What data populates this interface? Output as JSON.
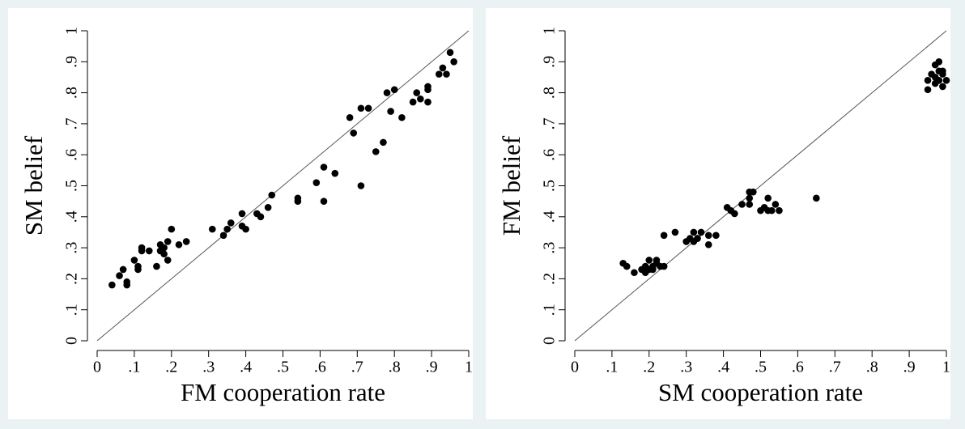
{
  "chart_data": [
    {
      "type": "scatter",
      "xlabel": "FM cooperation rate",
      "ylabel": "SM belief",
      "color": "#000000",
      "diagonal": true,
      "xlim": [
        0,
        1
      ],
      "ylim": [
        0,
        1
      ],
      "xticks": [
        0,
        {
          "value": 0.1,
          "label": ".1"
        },
        {
          "value": 0.2,
          "label": ".2"
        },
        {
          "value": 0.3,
          "label": ".3"
        },
        {
          "value": 0.4,
          "label": ".4"
        },
        {
          "value": 0.5,
          "label": ".5"
        },
        {
          "value": 0.6,
          "label": ".6"
        },
        {
          "value": 0.7,
          "label": ".7"
        },
        {
          "value": 0.8,
          "label": ".8"
        },
        {
          "value": 0.9,
          "label": ".9"
        },
        1
      ],
      "yticks": [
        0,
        {
          "value": 0.1,
          "label": ".1"
        },
        {
          "value": 0.2,
          "label": ".2"
        },
        {
          "value": 0.3,
          "label": ".3"
        },
        {
          "value": 0.4,
          "label": ".4"
        },
        {
          "value": 0.5,
          "label": ".5"
        },
        {
          "value": 0.6,
          "label": ".6"
        },
        {
          "value": 0.7,
          "label": ".7"
        },
        {
          "value": 0.8,
          "label": ".8"
        },
        {
          "value": 0.9,
          "label": ".9"
        },
        1
      ],
      "x": [
        0.04,
        0.06,
        0.07,
        0.08,
        0.08,
        0.1,
        0.11,
        0.11,
        0.12,
        0.12,
        0.14,
        0.16,
        0.17,
        0.17,
        0.18,
        0.18,
        0.19,
        0.19,
        0.2,
        0.22,
        0.24,
        0.31,
        0.34,
        0.35,
        0.36,
        0.39,
        0.39,
        0.4,
        0.43,
        0.44,
        0.46,
        0.47,
        0.54,
        0.54,
        0.59,
        0.61,
        0.61,
        0.64,
        0.68,
        0.69,
        0.71,
        0.71,
        0.73,
        0.75,
        0.77,
        0.78,
        0.79,
        0.8,
        0.82,
        0.85,
        0.86,
        0.87,
        0.89,
        0.89,
        0.89,
        0.92,
        0.93,
        0.94,
        0.95,
        0.96
      ],
      "values": [
        0.18,
        0.21,
        0.23,
        0.19,
        0.18,
        0.26,
        0.23,
        0.24,
        0.3,
        0.29,
        0.29,
        0.24,
        0.31,
        0.29,
        0.28,
        0.3,
        0.26,
        0.32,
        0.36,
        0.31,
        0.32,
        0.36,
        0.34,
        0.36,
        0.38,
        0.41,
        0.37,
        0.36,
        0.41,
        0.4,
        0.43,
        0.47,
        0.45,
        0.46,
        0.51,
        0.56,
        0.45,
        0.54,
        0.72,
        0.67,
        0.75,
        0.5,
        0.75,
        0.61,
        0.64,
        0.8,
        0.74,
        0.81,
        0.72,
        0.77,
        0.8,
        0.78,
        0.82,
        0.81,
        0.77,
        0.86,
        0.88,
        0.86,
        0.93,
        0.9
      ]
    },
    {
      "type": "scatter",
      "xlabel": "SM cooperation rate",
      "ylabel": "FM belief",
      "color": "#000000",
      "diagonal": true,
      "xlim": [
        0,
        1
      ],
      "ylim": [
        0,
        1
      ],
      "xticks": [
        0,
        {
          "value": 0.1,
          "label": ".1"
        },
        {
          "value": 0.2,
          "label": ".2"
        },
        {
          "value": 0.3,
          "label": ".3"
        },
        {
          "value": 0.4,
          "label": ".4"
        },
        {
          "value": 0.5,
          "label": ".5"
        },
        {
          "value": 0.6,
          "label": ".6"
        },
        {
          "value": 0.7,
          "label": ".7"
        },
        {
          "value": 0.8,
          "label": ".8"
        },
        {
          "value": 0.9,
          "label": ".9"
        },
        1
      ],
      "yticks": [
        0,
        {
          "value": 0.1,
          "label": ".1"
        },
        {
          "value": 0.2,
          "label": ".2"
        },
        {
          "value": 0.3,
          "label": ".3"
        },
        {
          "value": 0.4,
          "label": ".4"
        },
        {
          "value": 0.5,
          "label": ".5"
        },
        {
          "value": 0.6,
          "label": ".6"
        },
        {
          "value": 0.7,
          "label": ".7"
        },
        {
          "value": 0.8,
          "label": ".8"
        },
        {
          "value": 0.9,
          "label": ".9"
        },
        1
      ],
      "x": [
        0.13,
        0.14,
        0.16,
        0.18,
        0.19,
        0.19,
        0.2,
        0.2,
        0.21,
        0.21,
        0.22,
        0.22,
        0.23,
        0.24,
        0.24,
        0.27,
        0.3,
        0.31,
        0.32,
        0.32,
        0.33,
        0.33,
        0.34,
        0.36,
        0.36,
        0.38,
        0.41,
        0.42,
        0.43,
        0.47,
        0.47,
        0.45,
        0.47,
        0.48,
        0.5,
        0.51,
        0.52,
        0.53,
        0.54,
        0.52,
        0.55,
        0.65,
        0.95,
        0.95,
        0.96,
        0.97,
        0.97,
        0.98,
        0.98,
        0.98,
        0.99,
        0.99,
        0.99,
        1.0,
        0.97
      ],
      "values": [
        0.25,
        0.24,
        0.22,
        0.23,
        0.24,
        0.22,
        0.23,
        0.26,
        0.23,
        0.24,
        0.26,
        0.25,
        0.24,
        0.24,
        0.34,
        0.35,
        0.32,
        0.33,
        0.32,
        0.35,
        0.33,
        0.33,
        0.35,
        0.34,
        0.31,
        0.34,
        0.43,
        0.42,
        0.41,
        0.48,
        0.46,
        0.44,
        0.44,
        0.48,
        0.42,
        0.43,
        0.42,
        0.42,
        0.44,
        0.46,
        0.42,
        0.46,
        0.84,
        0.81,
        0.86,
        0.89,
        0.85,
        0.87,
        0.84,
        0.9,
        0.82,
        0.86,
        0.87,
        0.84,
        0.83
      ]
    }
  ]
}
